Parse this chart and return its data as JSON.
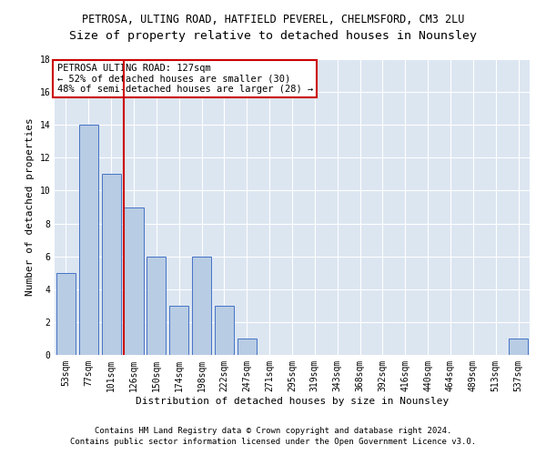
{
  "title1": "PETROSA, ULTING ROAD, HATFIELD PEVEREL, CHELMSFORD, CM3 2LU",
  "title2": "Size of property relative to detached houses in Nounsley",
  "xlabel": "Distribution of detached houses by size in Nounsley",
  "ylabel": "Number of detached properties",
  "categories": [
    "53sqm",
    "77sqm",
    "101sqm",
    "126sqm",
    "150sqm",
    "174sqm",
    "198sqm",
    "222sqm",
    "247sqm",
    "271sqm",
    "295sqm",
    "319sqm",
    "343sqm",
    "368sqm",
    "392sqm",
    "416sqm",
    "440sqm",
    "464sqm",
    "489sqm",
    "513sqm",
    "537sqm"
  ],
  "values": [
    5,
    14,
    11,
    9,
    6,
    3,
    6,
    3,
    1,
    0,
    0,
    0,
    0,
    0,
    0,
    0,
    0,
    0,
    0,
    0,
    1
  ],
  "bar_color": "#b8cce4",
  "bar_edgecolor": "#4472c4",
  "annotation_line1": "PETROSA ULTING ROAD: 127sqm",
  "annotation_line2": "← 52% of detached houses are smaller (30)",
  "annotation_line3": "48% of semi-detached houses are larger (28) →",
  "annotation_box_color": "#ffffff",
  "annotation_box_edgecolor": "#cc0000",
  "red_line_color": "#cc0000",
  "ylim": [
    0,
    18
  ],
  "yticks": [
    0,
    2,
    4,
    6,
    8,
    10,
    12,
    14,
    16,
    18
  ],
  "background_color": "#dce6f1",
  "grid_color": "#ffffff",
  "footnote1": "Contains HM Land Registry data © Crown copyright and database right 2024.",
  "footnote2": "Contains public sector information licensed under the Open Government Licence v3.0.",
  "title1_fontsize": 8.5,
  "title2_fontsize": 9.5,
  "xlabel_fontsize": 8,
  "ylabel_fontsize": 8,
  "tick_fontsize": 7,
  "annotation_fontsize": 7.5,
  "footnote_fontsize": 6.5
}
